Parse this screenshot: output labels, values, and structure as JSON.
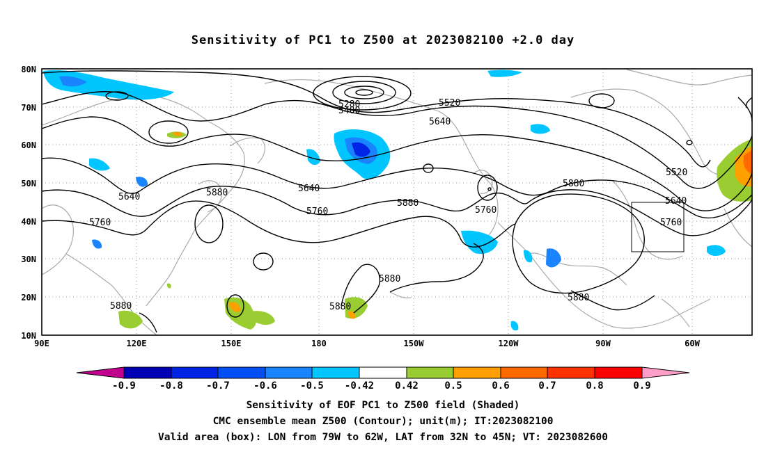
{
  "title": "Sensitivity of PC1 to Z500 at 2023082100 +2.0 day",
  "lat_labels": [
    "80N",
    "70N",
    "60N",
    "50N",
    "40N",
    "30N",
    "20N",
    "10N"
  ],
  "lon_labels": [
    "90E",
    "120E",
    "150E",
    "180",
    "150W",
    "120W",
    "90W",
    "60W"
  ],
  "contour_labels": [
    "5280",
    "5400",
    "5520",
    "5640",
    "5640",
    "5640",
    "5760",
    "5880",
    "5760",
    "5880",
    "5760",
    "5880",
    "5520",
    "5640",
    "5760",
    "5880",
    "5880",
    "5880",
    "5880"
  ],
  "colorbar": {
    "labels": [
      "-0.9",
      "-0.8",
      "-0.7",
      "-0.6",
      "-0.5",
      "-0.42",
      "0.42",
      "0.5",
      "0.6",
      "0.7",
      "0.8",
      "0.9"
    ],
    "colors": [
      "#c1008f",
      "#0000b4",
      "#0024e6",
      "#0050f5",
      "#1a84ff",
      "#00c5ff",
      "#ffffff",
      "#9acd32",
      "#ff9f00",
      "#ff6a00",
      "#ff3300",
      "#ff0000",
      "#ff9ec8"
    ]
  },
  "captions": {
    "line1": "Sensitivity of EOF PC1 to Z500 field (Shaded)",
    "line2": "CMC ensemble mean Z500 (Contour); unit(m); IT:2023082100",
    "line3": "Valid area (box): LON from 79W to 62W, LAT from 32N to 45N; VT: 2023082600"
  }
}
